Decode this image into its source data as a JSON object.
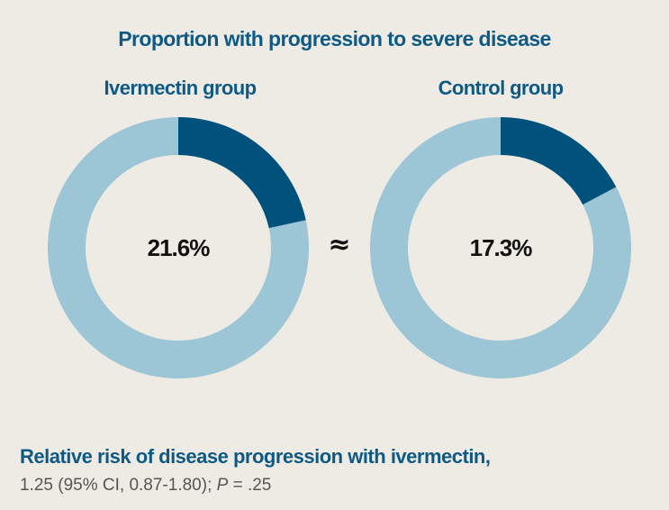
{
  "colors": {
    "background": "#edebe4",
    "title": "#0f5a84",
    "progression": "#00527c",
    "remainder": "#9cc5d6",
    "center_text": "#111111",
    "stats_text": "#555555"
  },
  "chart_data": {
    "type": "pie",
    "title": "Proportion with progression to severe disease",
    "charts": [
      {
        "name": "Ivermectin group",
        "label": "21.6%",
        "value": 21.6
      },
      {
        "name": "Control group",
        "label": "17.3%",
        "value": 17.3
      }
    ],
    "comparison_symbol": "≈"
  },
  "footer": {
    "heading": "Relative risk of disease progression with ivermectin,",
    "stats_prefix": "1.25 (95% CI, 0.87-1.80); ",
    "p_symbol": "P",
    "p_value": " = .25"
  }
}
